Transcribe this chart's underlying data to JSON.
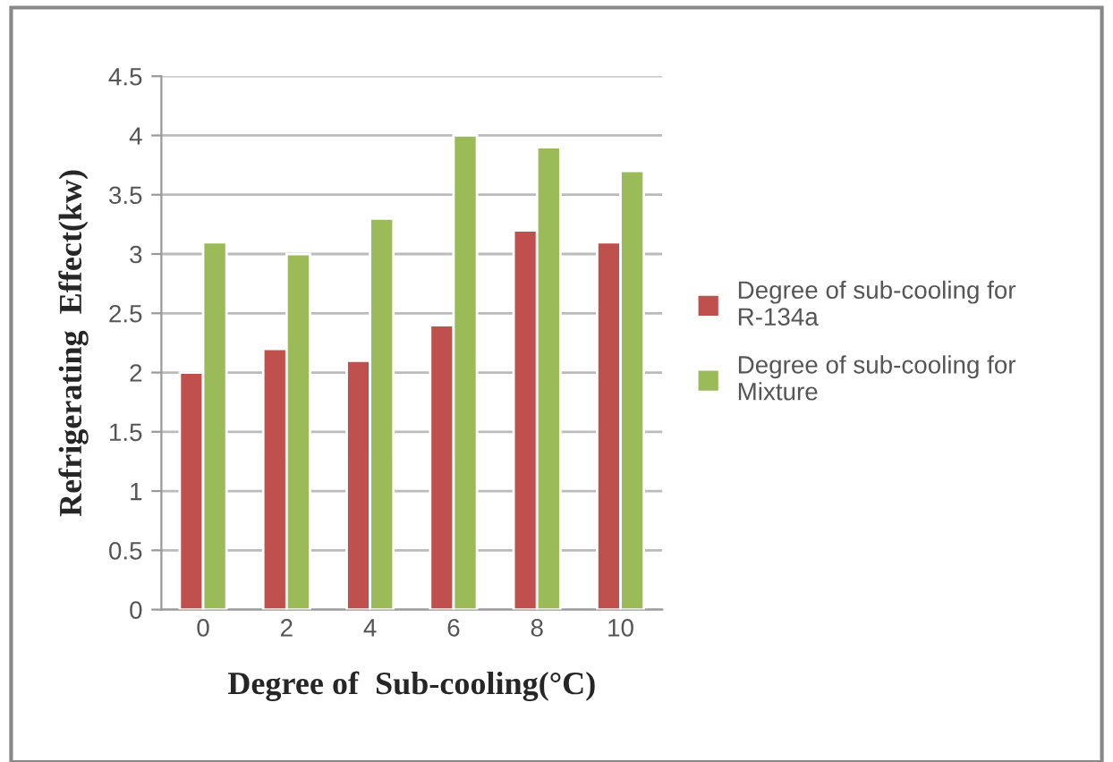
{
  "chart_data": {
    "type": "bar",
    "xlabel": "Degree of  Sub-cooling(°C)",
    "ylabel": "Refrigerating  Effect(kw)",
    "categories": [
      "0",
      "2",
      "4",
      "6",
      "8",
      "10"
    ],
    "series": [
      {
        "name": "Degree of sub-cooling for R-134a",
        "color": "#c0504d",
        "values": [
          2.0,
          2.2,
          2.1,
          2.4,
          3.2,
          3.1
        ]
      },
      {
        "name": "Degree of sub-cooling for Mixture",
        "color": "#9bbb59",
        "values": [
          3.1,
          3.0,
          3.3,
          4.0,
          3.9,
          3.7
        ]
      }
    ],
    "ylim": [
      0,
      4.5
    ],
    "yticks": [
      0,
      0.5,
      1,
      1.5,
      2,
      2.5,
      3,
      3.5,
      4,
      4.5
    ],
    "grid": "y",
    "legend": "right"
  }
}
